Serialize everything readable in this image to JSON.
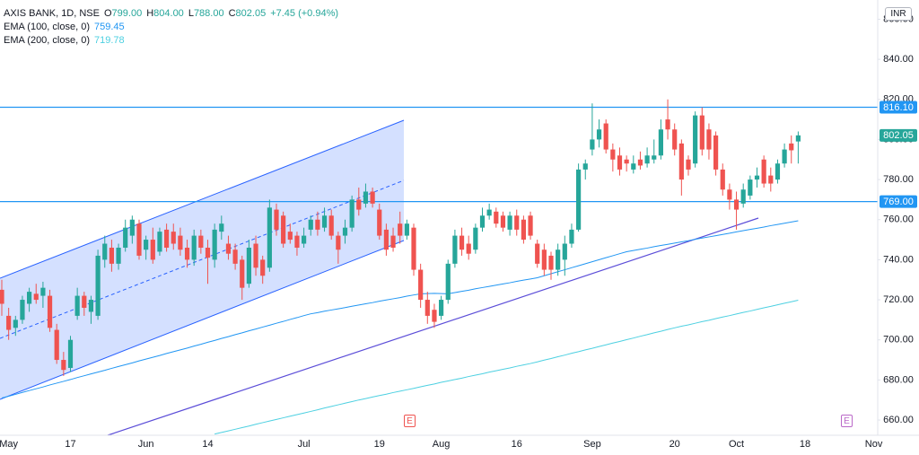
{
  "chart_data": {
    "type": "candlestick",
    "title": "AXIS BANK, 1D, NSE",
    "ohlc_legend": [
      {
        "key": "O",
        "value": "799.00"
      },
      {
        "key": "H",
        "value": "804.00"
      },
      {
        "key": "L",
        "value": "788.00"
      },
      {
        "key": "C",
        "value": "802.05"
      }
    ],
    "change": "+7.45 (+0.94%)",
    "currency": "INR",
    "events": [
      "E",
      "E"
    ],
    "up_color": "#26a69a",
    "down_color": "#ef5350",
    "grid": false,
    "ylim": [
      652.4,
      869.6
    ],
    "yticks": [
      {
        "value": 660,
        "label": "660.00"
      },
      {
        "value": 680,
        "label": "680.00"
      },
      {
        "value": 700,
        "label": "700.00"
      },
      {
        "value": 720,
        "label": "720.00"
      },
      {
        "value": 740,
        "label": "740.00"
      },
      {
        "value": 760,
        "label": "760.00"
      },
      {
        "value": 780,
        "label": "780.00"
      },
      {
        "value": 800,
        "label": "800.00"
      },
      {
        "value": 820,
        "label": "820.00"
      },
      {
        "value": 840,
        "label": "840.00"
      },
      {
        "value": 860,
        "label": "860.00"
      }
    ],
    "hlines": [
      {
        "value": 816.1,
        "label": "816.10",
        "color": "#2196f3"
      },
      {
        "value": 769,
        "label": "769.00",
        "color": "#2196f3"
      }
    ],
    "categories": [
      null,
      "May",
      null,
      null,
      null,
      null,
      null,
      null,
      null,
      null,
      "17",
      null,
      null,
      null,
      null,
      null,
      null,
      null,
      null,
      null,
      null,
      "Jun",
      null,
      null,
      null,
      null,
      null,
      null,
      null,
      null,
      "14",
      null,
      null,
      null,
      null,
      null,
      null,
      null,
      null,
      null,
      null,
      null,
      null,
      null,
      "Jul",
      null,
      null,
      null,
      null,
      null,
      null,
      null,
      null,
      null,
      null,
      "19",
      null,
      null,
      null,
      null,
      null,
      null,
      null,
      null,
      "Aug",
      null,
      null,
      null,
      null,
      null,
      null,
      null,
      null,
      null,
      null,
      "16",
      null,
      null,
      null,
      null,
      null,
      null,
      null,
      null,
      null,
      null,
      "Sep",
      null,
      null,
      null,
      null,
      null,
      null,
      null,
      null,
      null,
      null,
      null,
      "20",
      null,
      null,
      null,
      null,
      null,
      null,
      null,
      null,
      "Oct",
      null,
      null,
      null,
      null,
      null,
      null,
      null,
      null,
      null,
      "18",
      null,
      null,
      null,
      null,
      null,
      null,
      null,
      null,
      null,
      "Nov"
    ],
    "open": [
      725,
      712,
      706,
      710,
      718,
      723,
      722,
      722,
      705,
      690,
      686,
      712,
      722,
      714,
      712,
      740,
      746,
      738,
      746,
      752,
      758,
      745,
      750,
      744,
      755,
      754,
      752,
      746,
      740,
      752,
      746,
      740,
      754,
      748,
      745,
      740,
      728,
      748,
      740,
      736,
      765,
      762,
      754,
      752,
      748,
      755,
      760,
      756,
      762,
      752,
      752,
      756,
      770,
      768,
      774,
      765,
      755,
      752,
      758,
      752,
      756,
      735,
      720,
      715,
      712,
      720,
      738,
      752,
      748,
      745,
      756,
      762,
      764,
      762,
      755,
      762,
      760,
      762,
      748,
      745,
      742,
      735,
      740,
      748,
      755,
      785,
      795,
      800,
      808,
      795,
      792,
      790,
      785,
      790,
      788,
      790,
      792,
      810,
      805,
      798,
      790,
      788,
      812,
      805,
      802,
      785,
      775,
      770,
      768,
      772,
      780,
      790,
      782,
      780,
      788,
      798,
      799,
      null,
      null,
      null,
      null,
      null,
      null,
      null,
      null,
      null,
      null,
      null
    ],
    "high": [
      730,
      716,
      712,
      722,
      726,
      728,
      729,
      725,
      708,
      694,
      702,
      726,
      724,
      722,
      745,
      752,
      750,
      748,
      760,
      762,
      760,
      752,
      756,
      756,
      758,
      758,
      756,
      750,
      755,
      755,
      750,
      758,
      762,
      752,
      748,
      742,
      750,
      752,
      742,
      770,
      768,
      764,
      758,
      754,
      756,
      762,
      764,
      766,
      765,
      754,
      760,
      772,
      776,
      778,
      776,
      768,
      758,
      756,
      764,
      760,
      758,
      738,
      724,
      718,
      722,
      740,
      755,
      756,
      752,
      758,
      766,
      768,
      766,
      764,
      764,
      765,
      762,
      764,
      750,
      748,
      744,
      748,
      752,
      758,
      788,
      790,
      818,
      810,
      810,
      798,
      796,
      792,
      792,
      794,
      796,
      800,
      810,
      820,
      808,
      800,
      792,
      814,
      816,
      808,
      804,
      788,
      778,
      774,
      778,
      782,
      786,
      792,
      786,
      790,
      798,
      802,
      804,
      null,
      null,
      null,
      null,
      null,
      null,
      null,
      null,
      null,
      null,
      null
    ],
    "low": [
      712,
      700,
      702,
      708,
      714,
      718,
      716,
      704,
      688,
      682,
      684,
      710,
      712,
      708,
      710,
      736,
      734,
      735,
      744,
      748,
      740,
      740,
      738,
      742,
      744,
      745,
      742,
      736,
      737,
      743,
      728,
      736,
      750,
      740,
      735,
      720,
      726,
      732,
      728,
      734,
      752,
      746,
      748,
      742,
      746,
      752,
      752,
      754,
      750,
      738,
      748,
      754,
      762,
      766,
      766,
      750,
      742,
      744,
      748,
      750,
      732,
      716,
      708,
      706,
      710,
      718,
      736,
      742,
      740,
      743,
      754,
      760,
      756,
      754,
      752,
      752,
      748,
      750,
      736,
      732,
      730,
      732,
      732,
      746,
      754,
      780,
      792,
      796,
      793,
      784,
      782,
      784,
      783,
      785,
      786,
      788,
      790,
      800,
      792,
      772,
      782,
      786,
      792,
      790,
      782,
      772,
      765,
      755,
      766,
      770,
      776,
      776,
      774,
      778,
      786,
      788,
      788,
      null,
      null,
      null,
      null,
      null,
      null,
      null,
      null,
      null,
      null,
      null
    ],
    "close": [
      718,
      705,
      710,
      720,
      724,
      720,
      726,
      706,
      690,
      685,
      700,
      722,
      716,
      720,
      742,
      748,
      738,
      746,
      756,
      760,
      742,
      750,
      740,
      754,
      746,
      748,
      745,
      740,
      752,
      746,
      741,
      755,
      758,
      743,
      738,
      726,
      746,
      736,
      732,
      766,
      755,
      748,
      750,
      746,
      752,
      760,
      755,
      762,
      752,
      745,
      756,
      770,
      765,
      774,
      768,
      752,
      745,
      746,
      752,
      758,
      735,
      720,
      712,
      709,
      720,
      738,
      752,
      745,
      743,
      756,
      762,
      765,
      758,
      756,
      762,
      755,
      750,
      752,
      738,
      735,
      735,
      745,
      748,
      755,
      785,
      788,
      800,
      805,
      795,
      790,
      785,
      788,
      788,
      787,
      792,
      792,
      805,
      805,
      795,
      780,
      785,
      812,
      795,
      795,
      785,
      775,
      770,
      765,
      775,
      780,
      782,
      778,
      778,
      788,
      795,
      794.6,
      802.05,
      null,
      null,
      null,
      null,
      null,
      null,
      null,
      null,
      null,
      null,
      null
    ],
    "series": [
      {
        "name": "EMA (100, close, 0)",
        "color": "#2196f3",
        "values": [
          671,
          671.9,
          672.8,
          673.8,
          674.7,
          675.6,
          676.5,
          677.5,
          678.4,
          679.3,
          680.2,
          681.2,
          682.1,
          683,
          683.9,
          684.8,
          685.8,
          686.7,
          687.6,
          688.5,
          689.5,
          690.4,
          691.3,
          692.2,
          693.2,
          694.1,
          695,
          695.9,
          696.9,
          697.8,
          698.8,
          699.7,
          700.7,
          701.6,
          702.6,
          703.5,
          704.5,
          705.4,
          706.4,
          707.3,
          708.3,
          709.2,
          710.2,
          711.1,
          712.1,
          713,
          713.6,
          714.3,
          714.9,
          715.5,
          716.1,
          716.8,
          717.4,
          718,
          718.6,
          719.3,
          719.9,
          720.5,
          721.1,
          721.8,
          722.4,
          723,
          723.1,
          723.2,
          723.1,
          723,
          723.6,
          724.2,
          724.8,
          725.5,
          726.1,
          726.7,
          727.3,
          727.9,
          728.5,
          729.2,
          729.8,
          730.4,
          731,
          732,
          733,
          734,
          735,
          736,
          737,
          738,
          739,
          740,
          741,
          742,
          743,
          744,
          744.6,
          745.2,
          745.8,
          746.5,
          747.1,
          747.7,
          748.3,
          748.9,
          749.5,
          750.2,
          750.8,
          751.4,
          752,
          752.6,
          753.2,
          753.9,
          754.5,
          755.1,
          755.7,
          756.3,
          757,
          757.6,
          758.2,
          758.8,
          759.45,
          null,
          null,
          null,
          null,
          null,
          null,
          null,
          null,
          null,
          null,
          null
        ]
      },
      {
        "name": "EMA (200, close, 0)",
        "color": "#4dd0e1",
        "values": [
          null,
          null,
          null,
          null,
          null,
          null,
          null,
          null,
          null,
          null,
          null,
          null,
          null,
          null,
          null,
          null,
          null,
          null,
          null,
          null,
          null,
          null,
          null,
          null,
          null,
          null,
          null,
          null,
          null,
          null,
          null,
          653,
          653.8,
          654.6,
          655.4,
          656.2,
          657,
          657.9,
          658.7,
          659.5,
          660.3,
          661.1,
          661.9,
          662.7,
          663.5,
          664.3,
          665.1,
          666,
          666.8,
          667.6,
          668.4,
          669.2,
          670,
          670.7,
          671.5,
          672.2,
          672.9,
          673.7,
          674.4,
          675.1,
          675.8,
          676.6,
          677.3,
          678,
          678.8,
          679.5,
          680.2,
          680.9,
          681.7,
          682.4,
          683.1,
          683.9,
          684.6,
          685.3,
          686,
          686.8,
          687.5,
          688.2,
          689,
          689.9,
          690.7,
          691.6,
          692.4,
          693.3,
          694.1,
          695,
          695.8,
          696.7,
          697.5,
          698.4,
          699.2,
          700.1,
          700.9,
          701.8,
          702.6,
          703.5,
          704.3,
          705.2,
          706,
          706.8,
          707.5,
          708.3,
          709.1,
          709.8,
          710.6,
          711.4,
          712.1,
          712.9,
          713.7,
          714.4,
          715.2,
          716,
          716.7,
          717.5,
          718.3,
          719,
          719.78,
          null,
          null,
          null,
          null,
          null,
          null,
          null,
          null,
          null,
          null,
          null
        ]
      }
    ]
  }
}
